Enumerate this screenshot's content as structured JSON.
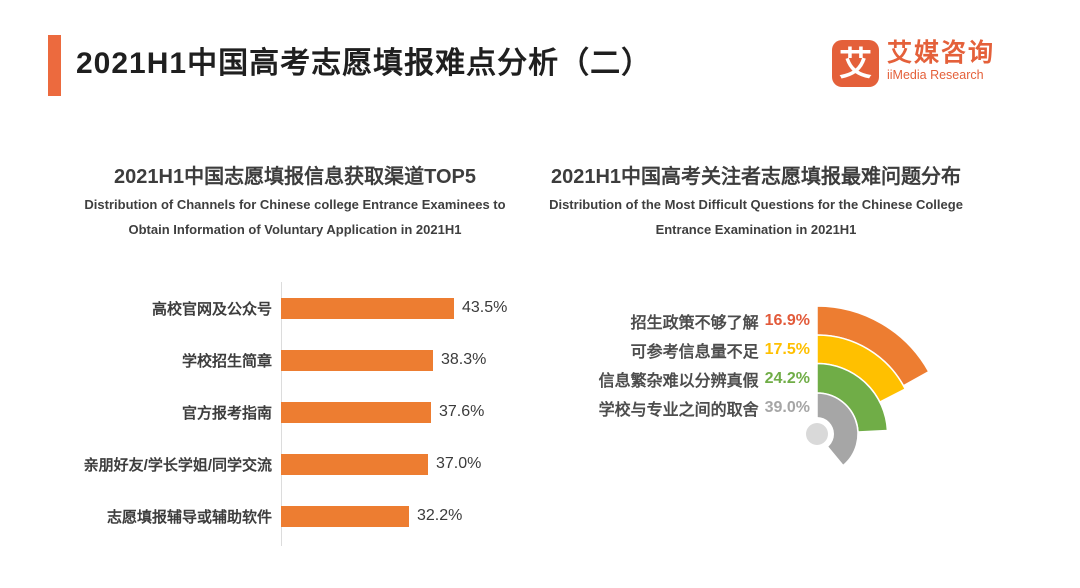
{
  "header": {
    "title": "2021H1中国高考志愿填报难点分析（二）",
    "accent_color": "#ec6a3e",
    "brand": {
      "logo_char": "艾",
      "name_cn": "艾媒咨询",
      "name_en": "iiMedia Research",
      "color": "#e4603a"
    }
  },
  "chart_data": [
    {
      "type": "bar",
      "orientation": "horizontal",
      "title": "2021H1中国志愿填报信息获取渠道TOP5",
      "subtitle": "Distribution of Channels for Chinese college Entrance Examinees to Obtain Information of Voluntary Application in 2021H1",
      "categories": [
        "高校官网及公众号",
        "学校招生简章",
        "官方报考指南",
        "亲朋好友/学长学姐/同学交流",
        "志愿填报辅导或辅助软件"
      ],
      "values": [
        43.5,
        38.3,
        37.6,
        37.0,
        32.2
      ],
      "unit": "%",
      "bar_color": "#ed7d31",
      "value_label_color": "#3b3b3b",
      "xlim": [
        0,
        50
      ],
      "grid": false,
      "legend": false
    },
    {
      "type": "pie",
      "variant": "fan-gauge",
      "title": "2021H1中国高考关注者志愿填报最难问题分布",
      "subtitle": "Distribution of the Most Difficult Questions for the Chinese College Entrance Examination in 2021H1",
      "categories": [
        "招生政策不够了解",
        "可参考信息量不足",
        "信息繁杂难以分辨真假",
        "学校与专业之间的取舍"
      ],
      "values": [
        16.9,
        17.5,
        24.2,
        39.0
      ],
      "unit": "%",
      "colors": [
        "#ed7d31",
        "#ffc000",
        "#70ad47",
        "#a6a6a6"
      ],
      "label_value_colors": [
        "#e25a3a",
        "#ffc000",
        "#70ad47",
        "#a6a6a6"
      ],
      "hub_color": "#d9d9d9",
      "legend": false
    }
  ]
}
